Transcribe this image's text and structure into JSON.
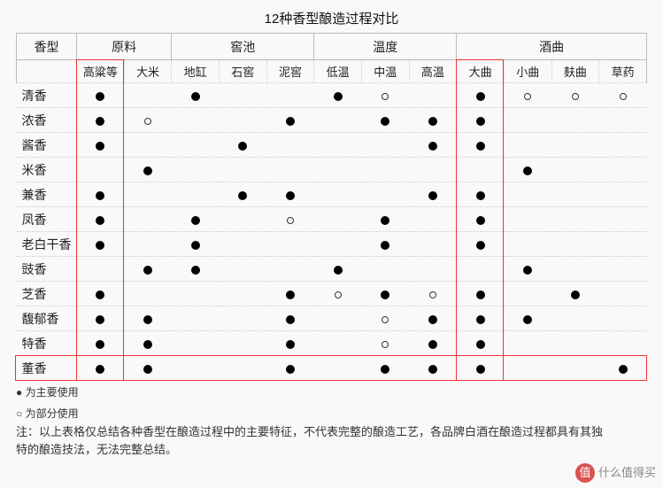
{
  "title": "12种香型酿造过程对比",
  "groups": [
    "香型",
    "原料",
    "窖池",
    "温度",
    "酒曲"
  ],
  "groupSpans": [
    1,
    2,
    3,
    3,
    4
  ],
  "subHeaders": [
    "",
    "高粱等",
    "大米",
    "地缸",
    "石窖",
    "泥窖",
    "低温",
    "中温",
    "高温",
    "大曲",
    "小曲",
    "麸曲",
    "草药"
  ],
  "rowLabels": [
    "清香",
    "浓香",
    "酱香",
    "米香",
    "兼香",
    "凤香",
    "老白干香",
    "豉香",
    "芝香",
    "馥郁香",
    "特香",
    "董香"
  ],
  "cells": [
    [
      "f",
      "",
      "f",
      "",
      "",
      "f",
      "o",
      "",
      "f",
      "o",
      "o",
      "o"
    ],
    [
      "f",
      "o",
      "",
      "",
      "f",
      "",
      "f",
      "f",
      "f",
      "",
      "",
      ""
    ],
    [
      "f",
      "",
      "",
      "f",
      "",
      "",
      "",
      "f",
      "f",
      "",
      "",
      ""
    ],
    [
      "",
      "f",
      "",
      "",
      "",
      "",
      "",
      "",
      "",
      "f",
      "",
      ""
    ],
    [
      "f",
      "",
      "",
      "f",
      "f",
      "",
      "",
      "f",
      "f",
      "",
      "",
      ""
    ],
    [
      "f",
      "",
      "f",
      "",
      "o",
      "",
      "f",
      "",
      "f",
      "",
      "",
      ""
    ],
    [
      "f",
      "",
      "f",
      "",
      "",
      "",
      "f",
      "",
      "f",
      "",
      "",
      ""
    ],
    [
      "",
      "f",
      "f",
      "",
      "",
      "f",
      "",
      "",
      "",
      "f",
      "",
      ""
    ],
    [
      "f",
      "",
      "",
      "",
      "f",
      "o",
      "f",
      "o",
      "f",
      "",
      "f",
      ""
    ],
    [
      "f",
      "f",
      "",
      "",
      "f",
      "",
      "o",
      "f",
      "f",
      "f",
      "",
      ""
    ],
    [
      "f",
      "f",
      "",
      "",
      "f",
      "",
      "o",
      "f",
      "f",
      "",
      "",
      ""
    ],
    [
      "f",
      "f",
      "",
      "",
      "f",
      "",
      "f",
      "f",
      "f",
      "",
      "",
      "f"
    ]
  ],
  "legend1": "● 为主要使用",
  "legend2": "○ 为部分使用",
  "note": "注：以上表格仅总结各种香型在酿造过程中的主要特征，不代表完整的酿造工艺，各品牌白酒在酿造过程都具有其独特的酿造技法，无法完整总结。",
  "highlightCols": [
    1,
    9
  ],
  "highlightRow": 11,
  "watermark": {
    "badge": "值",
    "text": "什么值得买"
  }
}
